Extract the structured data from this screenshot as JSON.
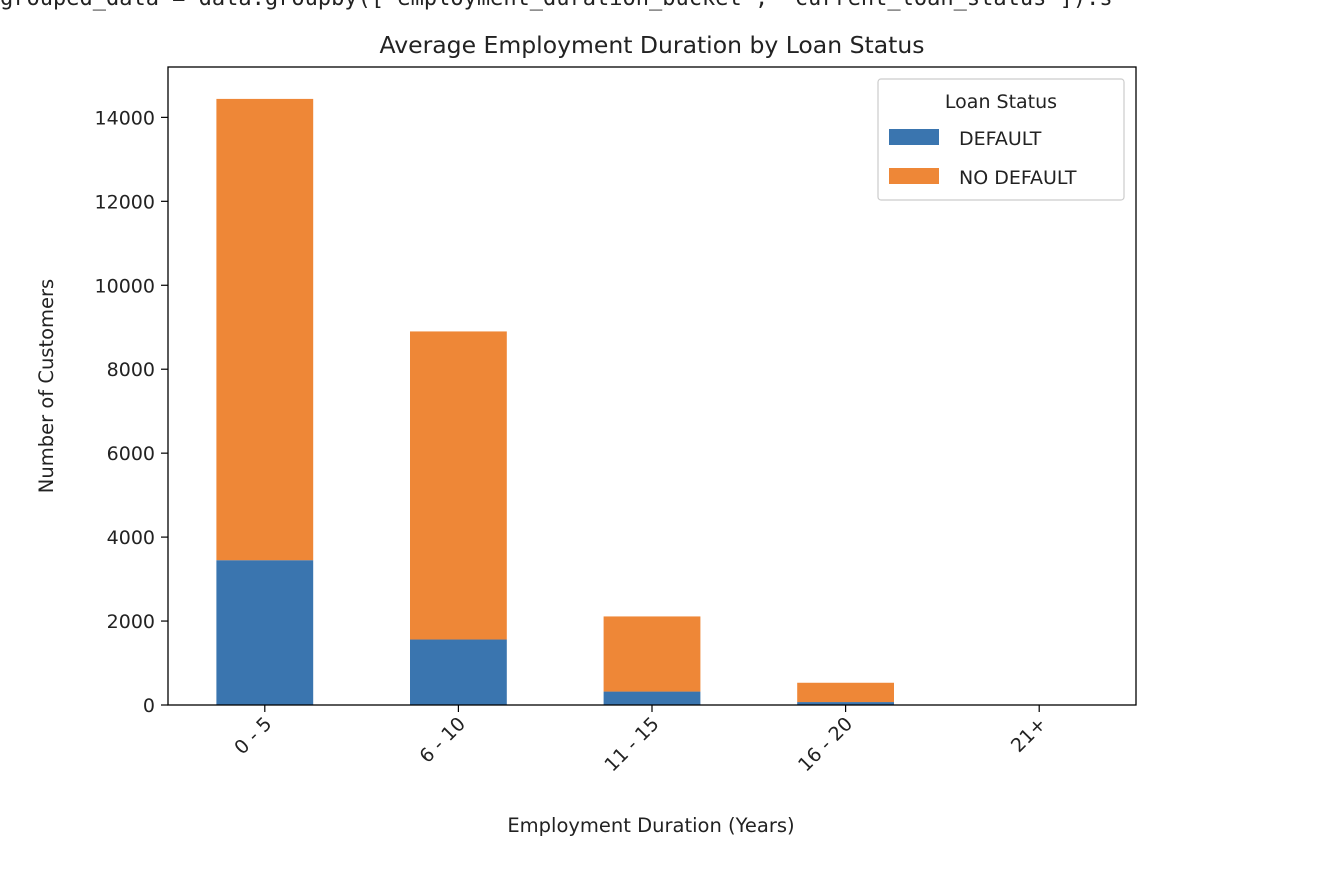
{
  "code_line": "grouped_data = data.groupby(['employment_duration_bucket', 'current_loan_status']).s",
  "chart_data": {
    "type": "bar",
    "stacked": true,
    "title": "Average Employment Duration by Loan Status",
    "xlabel": "Employment Duration (Years)",
    "ylabel": "Number of Customers",
    "categories": [
      "0 - 5",
      "6 - 10",
      "11 - 15",
      "16 - 20",
      "21+"
    ],
    "ylim": [
      0,
      15200
    ],
    "yticks": [
      0,
      2000,
      4000,
      6000,
      8000,
      10000,
      12000,
      14000
    ],
    "series": [
      {
        "name": "DEFAULT",
        "color": "#3a75af",
        "values": [
          3450,
          1560,
          320,
          70,
          0
        ]
      },
      {
        "name": "NO DEFAULT",
        "color": "#ee8737",
        "values": [
          10990,
          7340,
          1790,
          460,
          0
        ]
      }
    ],
    "legend": {
      "title": "Loan Status",
      "placement": "top-right"
    },
    "grid": false,
    "xtick_rotation": "45 degrees"
  }
}
